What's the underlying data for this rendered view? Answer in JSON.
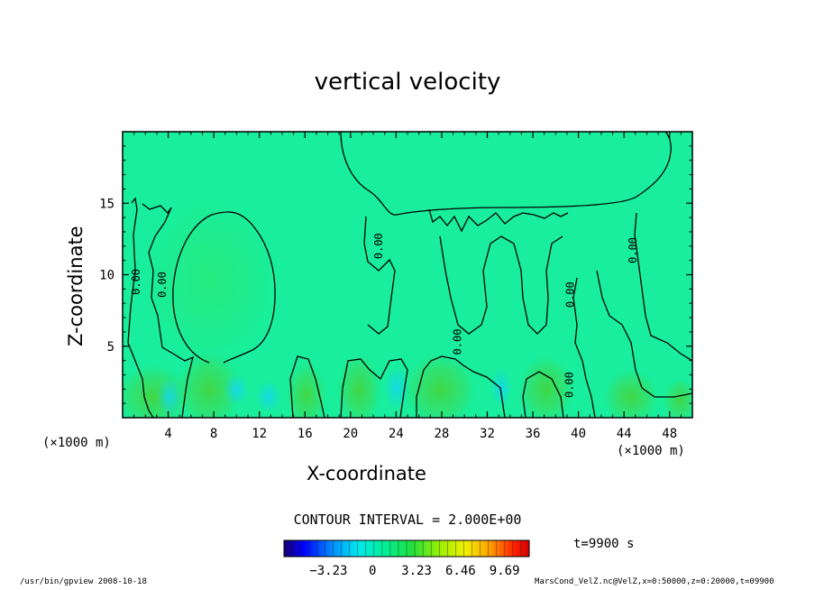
{
  "chart_data": {
    "type": "heatmap",
    "title": "vertical velocity",
    "xlabel": "X-coordinate",
    "ylabel": "Z-coordinate",
    "x_unit_labels": [
      "(×1000 m)",
      "(×1000 m)"
    ],
    "xlim": [
      0,
      50
    ],
    "ylim": [
      0,
      20
    ],
    "x_ticks": [
      4,
      8,
      12,
      16,
      20,
      24,
      28,
      32,
      36,
      40,
      44,
      48
    ],
    "y_ticks": [
      5,
      10,
      15
    ],
    "contour_interval": "CONTOUR INTERVAL = 2.000E+00",
    "contour_labels": [
      {
        "text": "0.00",
        "x": 1.5,
        "z": 9.5
      },
      {
        "text": "0.00",
        "x": 3.8,
        "z": 9.3
      },
      {
        "text": "0.00",
        "x": 22.8,
        "z": 12.0
      },
      {
        "text": "0.00",
        "x": 29.7,
        "z": 5.3
      },
      {
        "text": "0.00",
        "x": 39.6,
        "z": 8.6
      },
      {
        "text": "0.00",
        "x": 39.5,
        "z": 2.3
      },
      {
        "text": "0.00",
        "x": 45.1,
        "z": 11.7
      }
    ],
    "colorbar": {
      "tick_labels": [
        "−3.23",
        "0",
        "3.23",
        "6.46",
        "9.69"
      ],
      "tick_values": [
        -3.23,
        0,
        3.23,
        6.46,
        9.69
      ],
      "range": [
        -6.5,
        11.5
      ]
    },
    "time_label": "t=9900 s",
    "colors": {
      "background_field": "#18ee9c",
      "updraft": "#3ed84a",
      "downdraft": "#14d8ee",
      "contour": "#000000"
    }
  },
  "footer": {
    "left": "/usr/bin/gpview   2008-10-18",
    "right": "MarsCond_VelZ.nc@VelZ,x=0:50000,z=0:20000,t=09900"
  }
}
